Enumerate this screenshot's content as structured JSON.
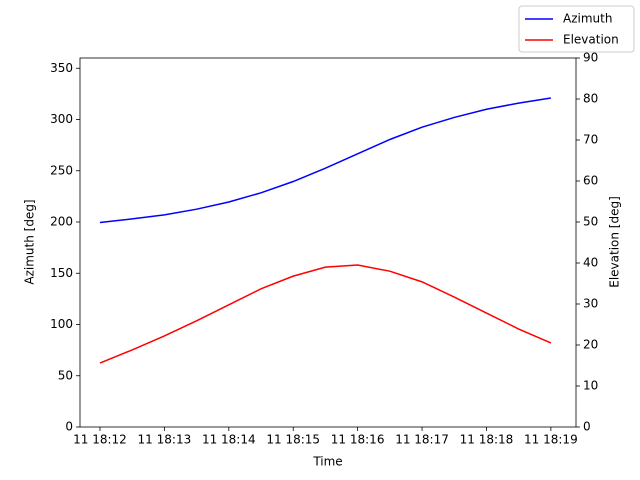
{
  "chart_data": {
    "type": "line",
    "xlabel": "Time",
    "ylabel": "Azimuth [deg]",
    "y2label": "Elevation [deg]",
    "x": [
      732,
      732.5,
      733,
      733.5,
      734,
      734.5,
      735,
      735.5,
      736,
      736.5,
      737,
      737.5,
      738,
      738.5,
      739
    ],
    "xlim": [
      731.69,
      739.39
    ],
    "xticks": [
      {
        "value": 732,
        "label": "11 18:12"
      },
      {
        "value": 733,
        "label": "11 18:13"
      },
      {
        "value": 734,
        "label": "11 18:14"
      },
      {
        "value": 735,
        "label": "11 18:15"
      },
      {
        "value": 736,
        "label": "11 18:16"
      },
      {
        "value": 737,
        "label": "11 18:17"
      },
      {
        "value": 738,
        "label": "11 18:18"
      },
      {
        "value": 739,
        "label": "11 18:19"
      }
    ],
    "ylim": [
      0,
      360
    ],
    "yticks": [
      0,
      50,
      100,
      150,
      200,
      250,
      300,
      350
    ],
    "y2lim": [
      0,
      90
    ],
    "y2ticks": [
      0,
      10,
      20,
      30,
      40,
      50,
      60,
      70,
      80,
      90
    ],
    "legend": "upper right",
    "series": [
      {
        "name": "Azimuth",
        "color": "#0000ff",
        "values": [
          199.5,
          203,
          207,
          212.5,
          219.5,
          228.5,
          239.5,
          252.5,
          266.5,
          280.5,
          292.5,
          302,
          310,
          316,
          321
        ]
      },
      {
        "name": "Elevation",
        "color": "#ff0000",
        "axis": "y2",
        "values": [
          15.6,
          18.8,
          22.2,
          25.9,
          29.8,
          33.7,
          36.8,
          39.0,
          39.5,
          38.0,
          35.4,
          31.7,
          27.8,
          23.9,
          20.5
        ]
      }
    ]
  }
}
